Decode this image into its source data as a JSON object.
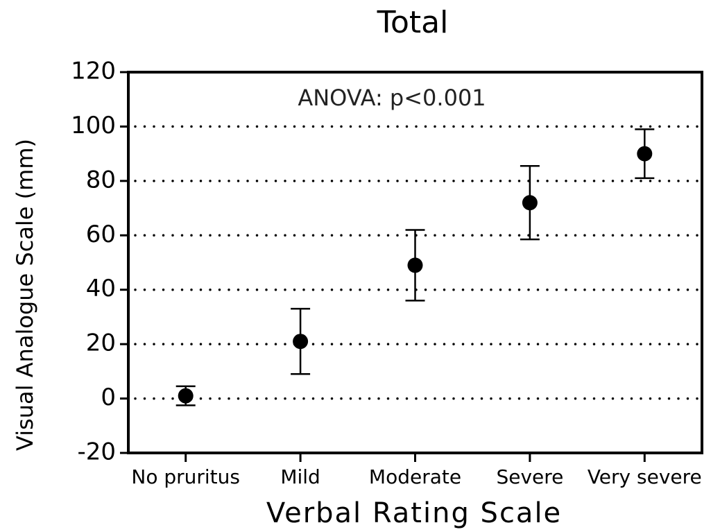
{
  "chart_data": {
    "type": "scatter",
    "title": "Total",
    "annotation": "ANOVA: p<0.001",
    "x_label": "Verbal Rating Scale",
    "y_label": "Visual Analogue Scale (mm)",
    "categories": [
      "No pruritus",
      "Mild",
      "Moderate",
      "Severe",
      "Very severe"
    ],
    "values": [
      1,
      21,
      49,
      72,
      90
    ],
    "errors": [
      3.5,
      12,
      13,
      13.5,
      9
    ],
    "color": "#000000",
    "ylim": [
      -20,
      120
    ],
    "yticks": [
      -20,
      0,
      20,
      40,
      60,
      80,
      100,
      120
    ],
    "grid": true
  }
}
